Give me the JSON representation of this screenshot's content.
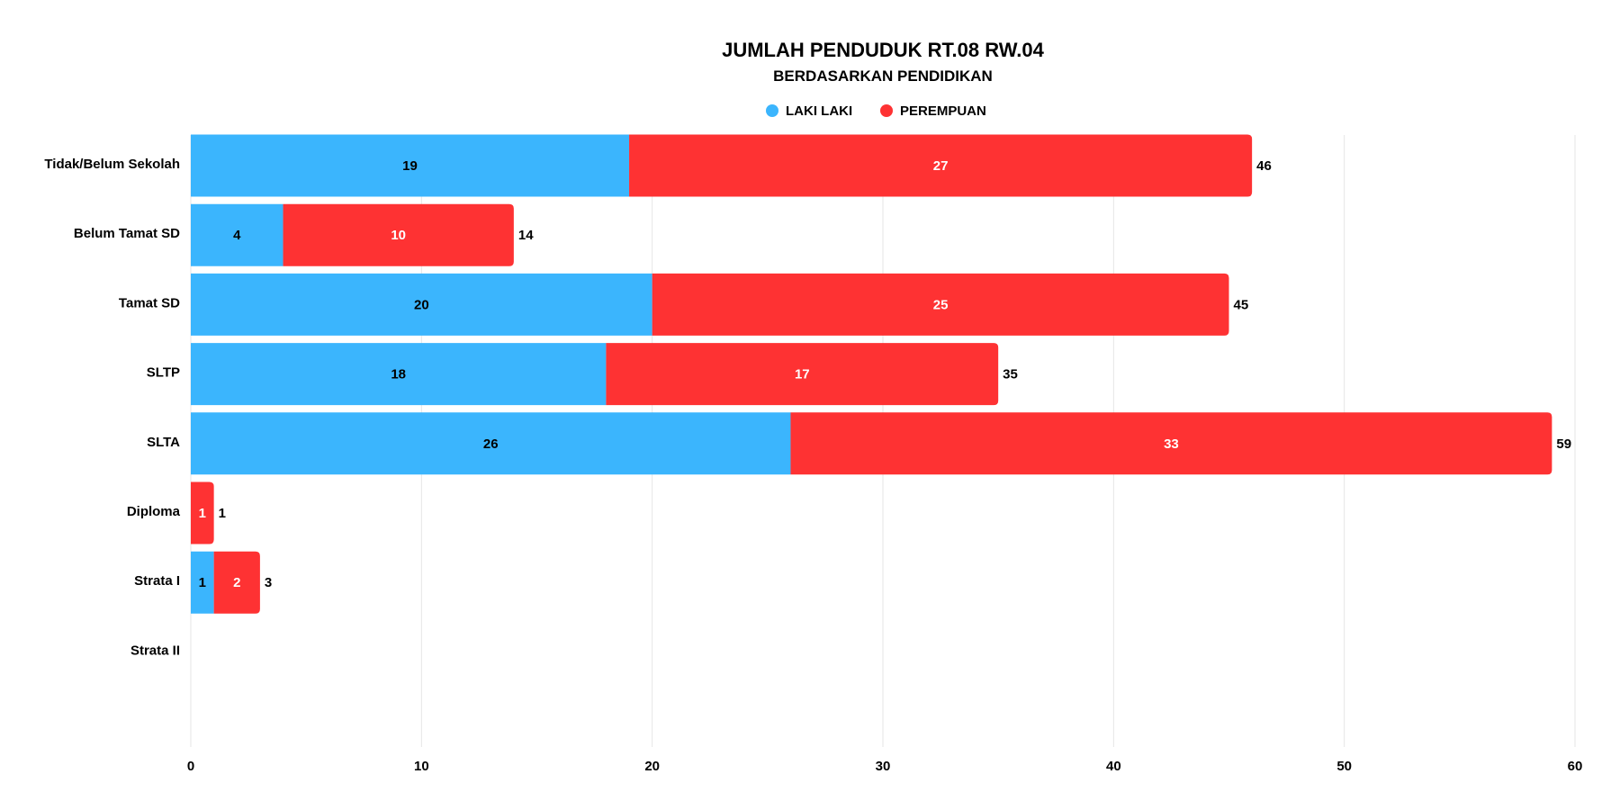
{
  "chart_data": {
    "type": "bar",
    "orientation": "horizontal",
    "stacked": true,
    "title": "JUMLAH PENDUDUK RT.08 RW.04",
    "subtitle": "BERDASARKAN PENDIDIKAN",
    "categories": [
      "Tidak/Belum Sekolah",
      "Belum Tamat SD",
      "Tamat SD",
      "SLTP",
      "SLTA",
      "Diploma",
      "Strata I",
      "Strata II"
    ],
    "series": [
      {
        "name": "LAKI LAKI",
        "color": "#3bb5fd",
        "label_color": "#000000",
        "values": [
          19,
          4,
          20,
          18,
          26,
          0,
          1,
          0
        ]
      },
      {
        "name": "PEREMPUAN",
        "color": "#fe3233",
        "label_color": "#ffffff",
        "values": [
          27,
          10,
          25,
          17,
          33,
          1,
          2,
          0
        ]
      }
    ],
    "totals": [
      46,
      14,
      45,
      35,
      59,
      1,
      3,
      null
    ],
    "xlim": [
      0,
      60
    ],
    "xticks": [
      "0",
      "10",
      "20",
      "30",
      "40",
      "50",
      "60"
    ],
    "grid": true,
    "legend_position": "top-center"
  }
}
